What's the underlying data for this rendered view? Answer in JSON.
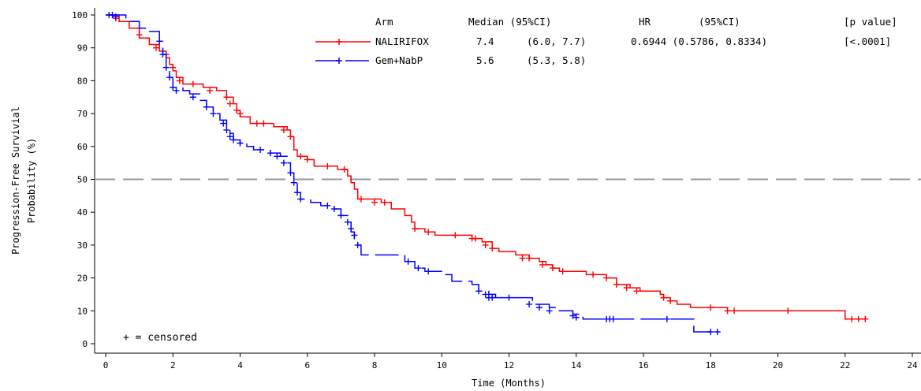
{
  "chart_data": {
    "type": "line",
    "ylabel_line1": "Progression-Free Survivial",
    "ylabel_line2": "Probability (%)",
    "xlabel": "Time (Months)",
    "xlim": [
      0,
      24
    ],
    "ylim": [
      0,
      100
    ],
    "xticks": [
      0,
      2,
      4,
      6,
      8,
      10,
      12,
      14,
      16,
      18,
      20,
      22,
      24
    ],
    "yticks": [
      0,
      10,
      20,
      30,
      40,
      50,
      60,
      70,
      80,
      90,
      100
    ],
    "reference_line": {
      "y": 50,
      "style": "dashed",
      "color": "#999999"
    },
    "censored_note": "+ = censored",
    "legend": {
      "headers": {
        "arm": "Arm",
        "median": "Median (95%CI)",
        "hr": "HR",
        "hr_ci": "(95%CI)",
        "p": "[p value]"
      },
      "rows": [
        {
          "name": "NALIRIFOX",
          "median": "7.4",
          "ci": "(6.0, 7.7)",
          "hr": "0.6944 (0.5786, 0.8334)",
          "p": "[<.0001]"
        },
        {
          "name": "Gem+NabP",
          "median": "5.6",
          "ci": "(5.3, 5.8)",
          "hr": "",
          "p": ""
        }
      ]
    },
    "series": [
      {
        "name": "NALIRIFOX",
        "color": "#ff0000",
        "dash": "solid",
        "steps": [
          [
            0,
            100
          ],
          [
            0.4,
            98
          ],
          [
            0.7,
            96
          ],
          [
            1.0,
            93
          ],
          [
            1.3,
            91
          ],
          [
            1.6,
            89
          ],
          [
            1.8,
            87
          ],
          [
            1.9,
            85
          ],
          [
            2.0,
            83
          ],
          [
            2.1,
            81
          ],
          [
            2.3,
            79
          ],
          [
            2.9,
            78
          ],
          [
            3.3,
            77
          ],
          [
            3.6,
            75
          ],
          [
            3.8,
            73
          ],
          [
            3.9,
            71
          ],
          [
            4.0,
            69
          ],
          [
            4.3,
            67
          ],
          [
            5.0,
            66
          ],
          [
            5.4,
            65
          ],
          [
            5.5,
            63
          ],
          [
            5.6,
            59
          ],
          [
            5.7,
            57
          ],
          [
            6.0,
            56
          ],
          [
            6.2,
            54
          ],
          [
            6.9,
            53
          ],
          [
            7.2,
            51
          ],
          [
            7.3,
            49
          ],
          [
            7.4,
            47
          ],
          [
            7.5,
            44
          ],
          [
            8.2,
            43
          ],
          [
            8.5,
            41
          ],
          [
            8.9,
            39
          ],
          [
            9.1,
            37
          ],
          [
            9.2,
            35
          ],
          [
            9.5,
            34
          ],
          [
            9.8,
            33
          ],
          [
            10.9,
            32
          ],
          [
            11.2,
            31
          ],
          [
            11.5,
            29
          ],
          [
            11.7,
            28
          ],
          [
            12.2,
            27
          ],
          [
            12.6,
            26
          ],
          [
            12.9,
            25
          ],
          [
            13.1,
            24
          ],
          [
            13.3,
            23
          ],
          [
            13.5,
            22
          ],
          [
            14.3,
            21
          ],
          [
            14.9,
            20
          ],
          [
            15.2,
            18
          ],
          [
            15.6,
            17
          ],
          [
            15.9,
            16
          ],
          [
            16.5,
            15
          ],
          [
            16.6,
            14
          ],
          [
            16.8,
            13
          ],
          [
            17.0,
            12
          ],
          [
            17.4,
            11
          ],
          [
            18.5,
            10
          ],
          [
            22.0,
            10
          ],
          [
            22.0,
            7.5
          ],
          [
            22.6,
            7.5
          ]
        ],
        "censored": [
          [
            0.3,
            99
          ],
          [
            1.0,
            94
          ],
          [
            1.5,
            90
          ],
          [
            1.8,
            88
          ],
          [
            2.0,
            84
          ],
          [
            2.2,
            80
          ],
          [
            2.6,
            79
          ],
          [
            3.1,
            77
          ],
          [
            3.6,
            75
          ],
          [
            3.7,
            73
          ],
          [
            3.9,
            71
          ],
          [
            4.0,
            70
          ],
          [
            4.5,
            67
          ],
          [
            4.7,
            67
          ],
          [
            5.3,
            65
          ],
          [
            5.5,
            63
          ],
          [
            5.8,
            57
          ],
          [
            6.0,
            56
          ],
          [
            6.6,
            54
          ],
          [
            7.1,
            53
          ],
          [
            7.6,
            44
          ],
          [
            8.0,
            43
          ],
          [
            8.3,
            43
          ],
          [
            9.2,
            35
          ],
          [
            9.6,
            34
          ],
          [
            10.4,
            33
          ],
          [
            10.9,
            32
          ],
          [
            11.0,
            32
          ],
          [
            11.3,
            30
          ],
          [
            11.5,
            29
          ],
          [
            12.4,
            26
          ],
          [
            12.6,
            26
          ],
          [
            13.0,
            24
          ],
          [
            13.3,
            23
          ],
          [
            13.6,
            22
          ],
          [
            14.5,
            21
          ],
          [
            14.9,
            20
          ],
          [
            15.2,
            18
          ],
          [
            15.5,
            17
          ],
          [
            15.8,
            16
          ],
          [
            16.6,
            14
          ],
          [
            16.8,
            13
          ],
          [
            18.0,
            11
          ],
          [
            18.5,
            10
          ],
          [
            18.7,
            10
          ],
          [
            20.3,
            10
          ],
          [
            22.2,
            7.5
          ],
          [
            22.4,
            7.5
          ],
          [
            22.6,
            7.5
          ]
        ]
      },
      {
        "name": "Gem+NabP",
        "color": "#0000ff",
        "dash": "dashed",
        "steps": [
          [
            0,
            100
          ],
          [
            0.6,
            98
          ],
          [
            1.0,
            96
          ],
          [
            1.3,
            95
          ],
          [
            1.6,
            92
          ],
          [
            1.7,
            88
          ],
          [
            1.8,
            84
          ],
          [
            1.9,
            81
          ],
          [
            2.0,
            78
          ],
          [
            2.3,
            77
          ],
          [
            2.5,
            76
          ],
          [
            2.8,
            74
          ],
          [
            3.0,
            72
          ],
          [
            3.2,
            70
          ],
          [
            3.4,
            68
          ],
          [
            3.6,
            66
          ],
          [
            3.7,
            64
          ],
          [
            3.8,
            62
          ],
          [
            4.0,
            61
          ],
          [
            4.2,
            60
          ],
          [
            4.4,
            59
          ],
          [
            4.9,
            58
          ],
          [
            5.2,
            57
          ],
          [
            5.4,
            55
          ],
          [
            5.5,
            52
          ],
          [
            5.6,
            49
          ],
          [
            5.7,
            46
          ],
          [
            5.8,
            44
          ],
          [
            6.1,
            43
          ],
          [
            6.4,
            42
          ],
          [
            6.8,
            41
          ],
          [
            7.0,
            39
          ],
          [
            7.2,
            37
          ],
          [
            7.3,
            34
          ],
          [
            7.4,
            31
          ],
          [
            7.5,
            30
          ],
          [
            7.6,
            27
          ],
          [
            8.5,
            27
          ],
          [
            8.9,
            25
          ],
          [
            9.2,
            23
          ],
          [
            9.5,
            22
          ],
          [
            10.1,
            21
          ],
          [
            10.3,
            19
          ],
          [
            10.9,
            18
          ],
          [
            11.1,
            16
          ],
          [
            11.4,
            15
          ],
          [
            11.6,
            14
          ],
          [
            12.5,
            14
          ],
          [
            12.7,
            12
          ],
          [
            13.2,
            11
          ],
          [
            13.5,
            10
          ],
          [
            13.9,
            9
          ],
          [
            14.2,
            7.5
          ],
          [
            17.3,
            7.5
          ],
          [
            17.5,
            3.6
          ],
          [
            18.2,
            3.6
          ]
        ],
        "censored": [
          [
            0.1,
            100
          ],
          [
            0.2,
            100
          ],
          [
            0.3,
            99.5
          ],
          [
            1.6,
            92
          ],
          [
            1.7,
            88
          ],
          [
            1.8,
            84
          ],
          [
            1.9,
            81
          ],
          [
            2.0,
            78
          ],
          [
            2.1,
            77
          ],
          [
            2.6,
            75
          ],
          [
            3.0,
            72
          ],
          [
            3.2,
            70
          ],
          [
            3.5,
            67
          ],
          [
            3.6,
            65
          ],
          [
            3.7,
            63
          ],
          [
            3.8,
            62
          ],
          [
            4.0,
            61
          ],
          [
            4.6,
            59
          ],
          [
            4.9,
            58
          ],
          [
            5.1,
            57
          ],
          [
            5.3,
            55
          ],
          [
            5.5,
            52
          ],
          [
            5.6,
            49
          ],
          [
            5.7,
            46
          ],
          [
            5.8,
            44
          ],
          [
            6.6,
            42
          ],
          [
            6.8,
            41
          ],
          [
            7.0,
            39
          ],
          [
            7.2,
            37
          ],
          [
            7.3,
            35
          ],
          [
            7.4,
            33
          ],
          [
            7.5,
            30
          ],
          [
            9.0,
            25
          ],
          [
            9.3,
            23
          ],
          [
            9.6,
            22
          ],
          [
            11.1,
            16
          ],
          [
            11.3,
            15
          ],
          [
            11.4,
            14
          ],
          [
            11.5,
            14
          ],
          [
            12.0,
            14
          ],
          [
            12.6,
            12
          ],
          [
            12.9,
            11
          ],
          [
            13.2,
            10
          ],
          [
            13.9,
            8.5
          ],
          [
            14.0,
            8
          ],
          [
            14.9,
            7.5
          ],
          [
            15.0,
            7.5
          ],
          [
            15.1,
            7.5
          ],
          [
            16.7,
            7.5
          ],
          [
            18.0,
            3.6
          ],
          [
            18.2,
            3.6
          ]
        ]
      }
    ]
  }
}
